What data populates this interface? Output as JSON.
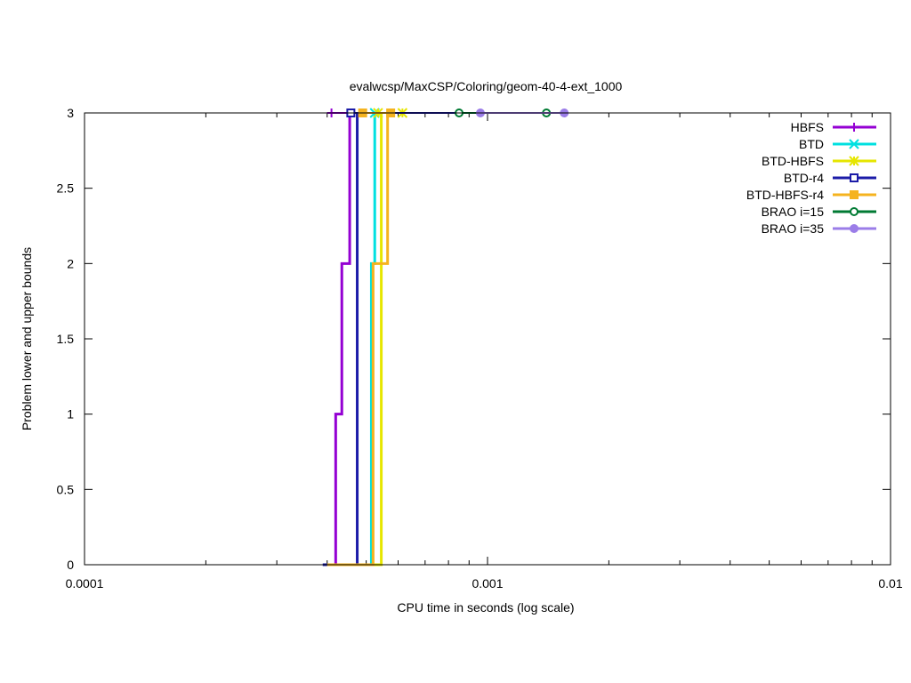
{
  "chart_data": {
    "type": "line",
    "title": "evalwcsp/MaxCSP/Coloring/geom-40-4-ext_1000",
    "xlabel": "CPU time in seconds (log scale)",
    "ylabel": "Problem lower and upper bounds",
    "xscale": "log",
    "xlim": [
      0.0001,
      0.01
    ],
    "ylim": [
      0,
      3
    ],
    "x_ticks": [
      {
        "value": 0.0001,
        "label": "0.0001"
      },
      {
        "value": 0.001,
        "label": "0.001"
      },
      {
        "value": 0.01,
        "label": "0.01"
      }
    ],
    "y_ticks": [
      {
        "value": 0,
        "label": "0"
      },
      {
        "value": 0.5,
        "label": "0.5"
      },
      {
        "value": 1,
        "label": "1"
      },
      {
        "value": 1.5,
        "label": "1.5"
      },
      {
        "value": 2,
        "label": "2"
      },
      {
        "value": 2.5,
        "label": "2.5"
      },
      {
        "value": 3,
        "label": "3"
      }
    ],
    "grid": false,
    "legend_position": "top-right",
    "series": [
      {
        "name": "HBFS",
        "color": "#9400d3",
        "marker": "plus",
        "lower": [
          [
            0.0004,
            0
          ],
          [
            0.00042,
            0
          ],
          [
            0.00042,
            1
          ],
          [
            0.000435,
            1
          ],
          [
            0.000435,
            2
          ],
          [
            0.000455,
            2
          ],
          [
            0.000455,
            3
          ]
        ],
        "upper": [
          [
            0.00041,
            3
          ],
          [
            0.000455,
            3
          ]
        ],
        "markers": [
          [
            0.00041,
            3
          ]
        ]
      },
      {
        "name": "BTD",
        "color": "#00e0e0",
        "marker": "cross",
        "lower": [
          [
            0.0004,
            0
          ],
          [
            0.000515,
            0
          ],
          [
            0.000515,
            2
          ],
          [
            0.000525,
            2
          ],
          [
            0.000525,
            3
          ]
        ],
        "upper": [
          [
            0.0005,
            3
          ],
          [
            0.000525,
            3
          ]
        ],
        "markers": [
          [
            0.000525,
            3
          ]
        ]
      },
      {
        "name": "BTD-HBFS",
        "color": "#e6e600",
        "marker": "star",
        "lower": [
          [
            0.0004,
            0
          ],
          [
            0.000545,
            0
          ],
          [
            0.000545,
            3
          ]
        ],
        "upper": [
          [
            0.0005,
            3
          ],
          [
            0.000615,
            3
          ]
        ],
        "markers": [
          [
            0.000535,
            3
          ],
          [
            0.000615,
            3
          ]
        ]
      },
      {
        "name": "BTD-r4",
        "color": "#1c1ca8",
        "marker": "open-square",
        "lower": [
          [
            0.00039,
            0
          ],
          [
            0.000475,
            0
          ],
          [
            0.000475,
            3
          ]
        ],
        "upper": [
          [
            0.000458,
            3
          ],
          [
            0.0015,
            3
          ]
        ],
        "markers": [
          [
            0.000458,
            3
          ]
        ]
      },
      {
        "name": "BTD-HBFS-r4",
        "color": "#f5b31f",
        "marker": "filled-square",
        "lower": [
          [
            0.0004,
            0
          ],
          [
            0.00052,
            0
          ],
          [
            0.00052,
            2
          ],
          [
            0.000565,
            2
          ],
          [
            0.000565,
            3
          ]
        ],
        "upper": [
          [
            0.000485,
            3
          ],
          [
            0.000585,
            3
          ]
        ],
        "markers": [
          [
            0.00049,
            3
          ],
          [
            0.000575,
            3
          ]
        ]
      },
      {
        "name": "BRAO i=15",
        "color": "#007a33",
        "marker": "open-circle",
        "lower": [],
        "upper": [
          [
            0.00085,
            3
          ],
          [
            0.0014,
            3
          ]
        ],
        "markers": [
          [
            0.00085,
            3
          ],
          [
            0.0014,
            3
          ]
        ]
      },
      {
        "name": "BRAO i=35",
        "color": "#9b7de8",
        "marker": "filled-circle",
        "lower": [],
        "upper": [
          [
            0.00096,
            3
          ],
          [
            0.00155,
            3
          ]
        ],
        "markers": [
          [
            0.00096,
            3
          ],
          [
            0.00155,
            3
          ]
        ]
      }
    ]
  }
}
